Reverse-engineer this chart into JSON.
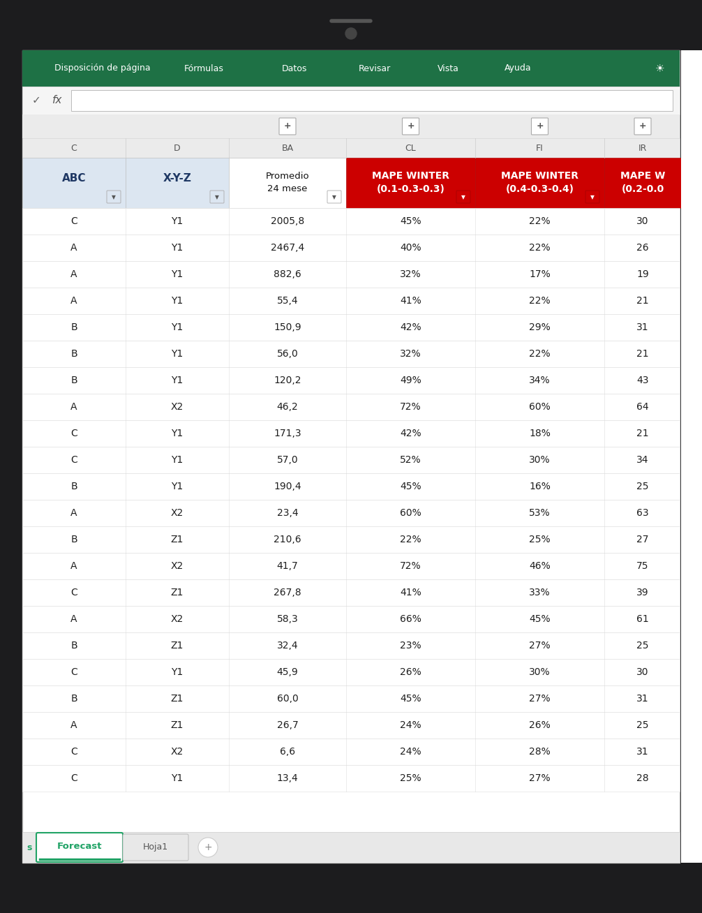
{
  "menu_items": [
    "Disposición de página",
    "Fórmulas",
    "Datos",
    "Revisar",
    "Vista",
    "Ayuda"
  ],
  "col_letters": [
    "C",
    "D",
    "BA",
    "CL",
    "FI",
    "IR"
  ],
  "header_row_line1": [
    "ABC",
    "X-Y-Z",
    "Promedio",
    "MAPE WINTER",
    "MAPE WINTER",
    "MAPE W"
  ],
  "header_row_line2": [
    "",
    "",
    "24 mese",
    "(0.1-0.3-0.3)",
    "(0.4-0.3-0.4)",
    "(0.2-0.0"
  ],
  "data_rows": [
    [
      "C",
      "Y1",
      "2005,8",
      "45%",
      "22%",
      "30"
    ],
    [
      "A",
      "Y1",
      "2467,4",
      "40%",
      "22%",
      "26"
    ],
    [
      "A",
      "Y1",
      "882,6",
      "32%",
      "17%",
      "19"
    ],
    [
      "A",
      "Y1",
      "55,4",
      "41%",
      "22%",
      "21"
    ],
    [
      "B",
      "Y1",
      "150,9",
      "42%",
      "29%",
      "31"
    ],
    [
      "B",
      "Y1",
      "56,0",
      "32%",
      "22%",
      "21"
    ],
    [
      "B",
      "Y1",
      "120,2",
      "49%",
      "34%",
      "43"
    ],
    [
      "A",
      "X2",
      "46,2",
      "72%",
      "60%",
      "64"
    ],
    [
      "C",
      "Y1",
      "171,3",
      "42%",
      "18%",
      "21"
    ],
    [
      "C",
      "Y1",
      "57,0",
      "52%",
      "30%",
      "34"
    ],
    [
      "B",
      "Y1",
      "190,4",
      "45%",
      "16%",
      "25"
    ],
    [
      "A",
      "X2",
      "23,4",
      "60%",
      "53%",
      "63"
    ],
    [
      "B",
      "Z1",
      "210,6",
      "22%",
      "25%",
      "27"
    ],
    [
      "A",
      "X2",
      "41,7",
      "72%",
      "46%",
      "75"
    ],
    [
      "C",
      "Z1",
      "267,8",
      "41%",
      "33%",
      "39"
    ],
    [
      "A",
      "X2",
      "58,3",
      "66%",
      "45%",
      "61"
    ],
    [
      "B",
      "Z1",
      "32,4",
      "23%",
      "27%",
      "25"
    ],
    [
      "C",
      "Y1",
      "45,9",
      "26%",
      "30%",
      "30"
    ],
    [
      "B",
      "Z1",
      "60,0",
      "45%",
      "27%",
      "31"
    ],
    [
      "A",
      "Z1",
      "26,7",
      "24%",
      "26%",
      "25"
    ],
    [
      "C",
      "X2",
      "6,6",
      "24%",
      "28%",
      "31"
    ],
    [
      "C",
      "Y1",
      "13,4",
      "25%",
      "27%",
      "28"
    ]
  ],
  "toolbar_green": "#1E7145",
  "red_header_bg": "#CC0000",
  "light_blue_header_bg": "#DCE6F1",
  "text_dark": "#1F1F1F",
  "tab_green": "#21A366",
  "device_bg": "#2A2A2A"
}
